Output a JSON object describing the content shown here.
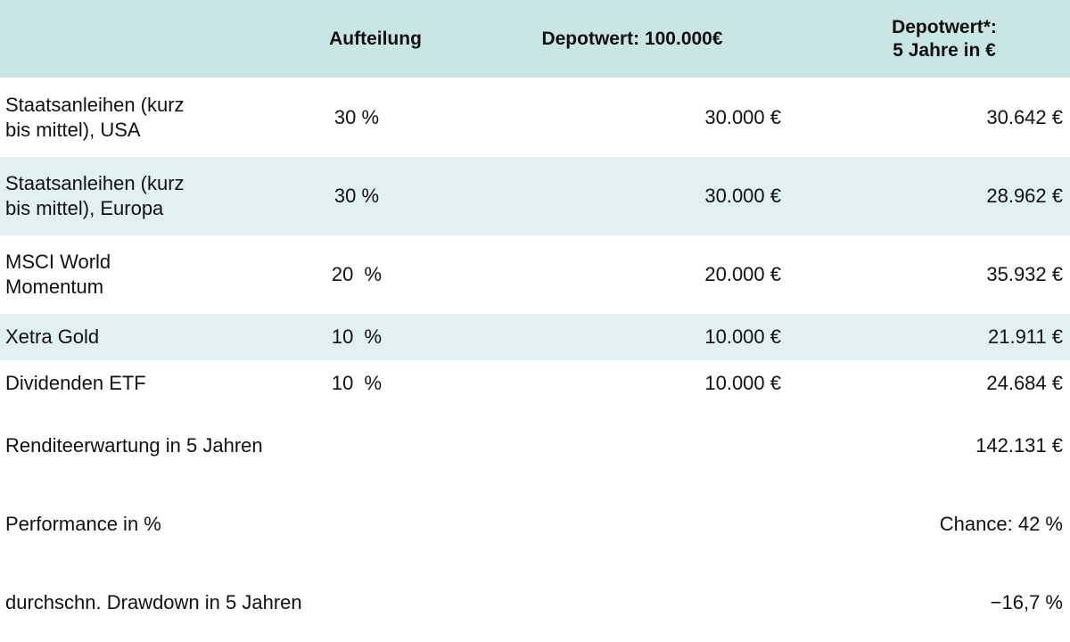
{
  "header": {
    "col_label": "",
    "col_split": "Aufteilung",
    "col_depot": "Depotwert: 100.000€",
    "col_future_line1": "Depotwert*:",
    "col_future_line2": "5 Jahre in €"
  },
  "rows": [
    {
      "label_line1": "Staatsanleihen (kurz",
      "label_line2": "bis mittel), USA",
      "split": "30 %",
      "depot": "30.000 €",
      "future": "30.642 €"
    },
    {
      "label_line1": "Staatsanleihen (kurz",
      "label_line2": "bis mittel), Europa",
      "split": "30 %",
      "depot": "30.000 €",
      "future": "28.962 €"
    },
    {
      "label_line1": "MSCI World",
      "label_line2": "Momentum",
      "split": "20  %",
      "depot": "20.000 €",
      "future": "35.932 €"
    },
    {
      "label_line1": "Xetra Gold",
      "label_line2": "",
      "split": "10  %",
      "depot": "10.000 €",
      "future": "21.911 €"
    },
    {
      "label_line1": "Dividenden ETF",
      "label_line2": "",
      "split": "10  %",
      "depot": "10.000 €",
      "future": "24.684 €"
    }
  ],
  "summary": [
    {
      "label": "Renditeerwartung in 5 Jahren",
      "value": "142.131 €"
    },
    {
      "label": "Performance in %",
      "value": "Chance: 42 %"
    },
    {
      "label": "durchschn. Drawdown in 5 Jahren",
      "value": "−16,7 %"
    }
  ],
  "colors": {
    "header_bg": "#c9e5e4",
    "stripe_bg": "#e1f0f0",
    "plain_bg": "#ffffff",
    "text": "#111111"
  }
}
